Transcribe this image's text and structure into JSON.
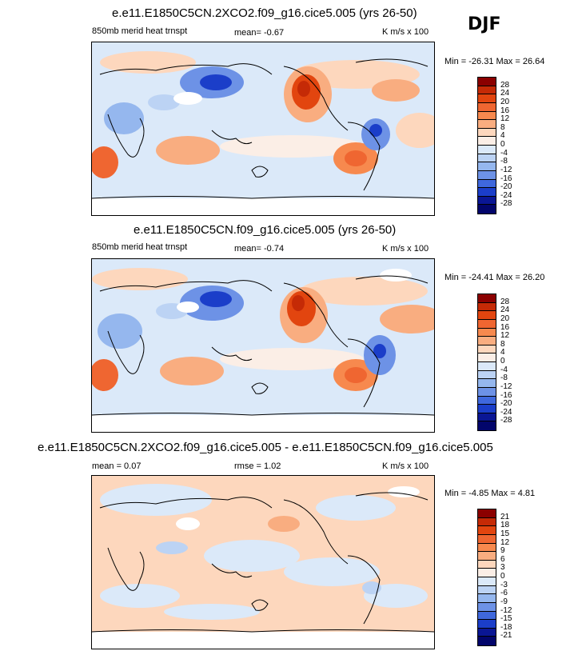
{
  "season": "DJF",
  "panels": [
    {
      "title": "e.e11.E1850C5CN.2XCO2.f09_g16.cice5.005 (yrs 26-50)",
      "left_label": "850mb merid heat trnspt",
      "mid_label": "mean=  -0.67",
      "units": "K m/s x 100",
      "minmax": "Min = -26.31 Max =  26.64",
      "levels": [
        "28",
        "24",
        "20",
        "16",
        "12",
        "8",
        "4",
        "0",
        "-4",
        "-8",
        "-12",
        "-16",
        "-20",
        "-24",
        "-28"
      ],
      "colors": [
        "#8b0000",
        "#c52a06",
        "#e2450f",
        "#ef6631",
        "#f7894e",
        "#f9ad80",
        "#fdd7bd",
        "#fbeee6",
        "#dbe9f9",
        "#bcd3f4",
        "#95b7ee",
        "#6d92e6",
        "#3f68dd",
        "#1b3ec9",
        "#0a1694",
        "#02056b"
      ]
    },
    {
      "title": "e.e11.E1850C5CN.f09_g16.cice5.005 (yrs 26-50)",
      "left_label": "850mb merid heat trnspt",
      "mid_label": "mean=  -0.74",
      "units": "K m/s x 100",
      "minmax": "Min = -24.41 Max =  26.20",
      "levels": [
        "28",
        "24",
        "20",
        "16",
        "12",
        "8",
        "4",
        "0",
        "-4",
        "-8",
        "-12",
        "-16",
        "-20",
        "-24",
        "-28"
      ],
      "colors": [
        "#8b0000",
        "#c52a06",
        "#e2450f",
        "#ef6631",
        "#f7894e",
        "#f9ad80",
        "#fdd7bd",
        "#fbeee6",
        "#dbe9f9",
        "#bcd3f4",
        "#95b7ee",
        "#6d92e6",
        "#3f68dd",
        "#1b3ec9",
        "#0a1694",
        "#02056b"
      ]
    },
    {
      "title": "e.e11.E1850C5CN.2XCO2.f09_g16.cice5.005 - e.e11.E1850C5CN.f09_g16.cice5.005",
      "left_label": "mean =  0.07",
      "mid_label": "rmse =   1.02",
      "units": "K m/s x 100",
      "minmax": "Min = -4.85 Max =  4.81",
      "levels": [
        "21",
        "18",
        "15",
        "12",
        "9",
        "6",
        "3",
        "0",
        "-3",
        "-6",
        "-9",
        "-12",
        "-15",
        "-18",
        "-21"
      ],
      "colors": [
        "#8b0000",
        "#c52a06",
        "#e2450f",
        "#ef6631",
        "#f7894e",
        "#f9ad80",
        "#fdd7bd",
        "#fbeee6",
        "#dbe9f9",
        "#bcd3f4",
        "#95b7ee",
        "#6d92e6",
        "#3f68dd",
        "#1b3ec9",
        "#0a1694",
        "#02056b"
      ]
    }
  ]
}
